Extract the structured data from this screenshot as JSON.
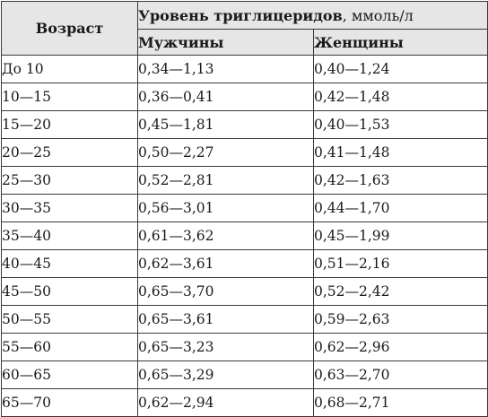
{
  "table": {
    "age_header": "Возраст",
    "group_header_bold": "Уровень триглицеридов",
    "group_header_unit": ", ммоль/л",
    "col_men": "Мужчины",
    "col_women": "Женщины",
    "rows": [
      {
        "age": "До 10",
        "men": "0,34—1,13",
        "women": "0,40—1,24"
      },
      {
        "age": "10—15",
        "men": "0,36—0,41",
        "women": "0,42—1,48"
      },
      {
        "age": "15—20",
        "men": "0,45—1,81",
        "women": "0,40—1,53"
      },
      {
        "age": "20—25",
        "men": "0,50—2,27",
        "women": "0,41—1,48"
      },
      {
        "age": "25—30",
        "men": "0,52—2,81",
        "women": "0,42—1,63"
      },
      {
        "age": "30—35",
        "men": "0,56—3,01",
        "women": "0,44—1,70"
      },
      {
        "age": "35—40",
        "men": "0,61—3,62",
        "women": "0,45—1,99"
      },
      {
        "age": "40—45",
        "men": "0,62—3,61",
        "women": "0,51—2,16"
      },
      {
        "age": "45—50",
        "men": "0,65—3,70",
        "women": "0,52—2,42"
      },
      {
        "age": "50—55",
        "men": "0,65—3,61",
        "women": "0,59—2,63"
      },
      {
        "age": "55—60",
        "men": "0,65—3,23",
        "women": "0,62—2,96"
      },
      {
        "age": "60—65",
        "men": "0,65—3,29",
        "women": "0,63—2,70"
      },
      {
        "age": "65—70",
        "men": "0,62—2,94",
        "women": "0,68—2,71"
      }
    ]
  }
}
